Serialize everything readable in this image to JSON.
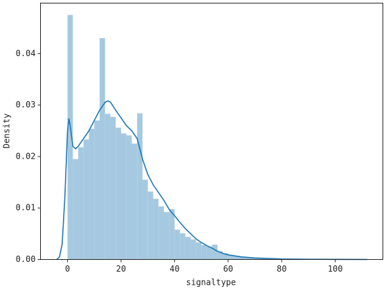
{
  "chart_data": {
    "type": "histogram",
    "xlabel": "signaltype",
    "ylabel": "Density",
    "bins": [
      0,
      2,
      4,
      6,
      8,
      10,
      12,
      14,
      16,
      18,
      20,
      22,
      24,
      26,
      28,
      30,
      32,
      34,
      36,
      38,
      40,
      42,
      44,
      46,
      48,
      50,
      52,
      54,
      56,
      58,
      60,
      62,
      64,
      66,
      68,
      70,
      72,
      74,
      76,
      78,
      80,
      82,
      84,
      86,
      88,
      90,
      92,
      94,
      96,
      98,
      100,
      102,
      104,
      106,
      108,
      110,
      112
    ],
    "values": [
      0.0475,
      0.0195,
      0.0218,
      0.0233,
      0.0254,
      0.027,
      0.043,
      0.0283,
      0.0277,
      0.0256,
      0.0245,
      0.0241,
      0.0225,
      0.0284,
      0.0155,
      0.0132,
      0.0118,
      0.0103,
      0.0092,
      0.0098,
      0.0058,
      0.0051,
      0.0044,
      0.0039,
      0.0033,
      0.0028,
      0.0025,
      0.0029,
      0.0016,
      0.0012,
      0.0009,
      0.0007,
      0.0005,
      0.0004,
      0.0003,
      0.0003,
      0.0002,
      0.0002,
      0.0001,
      0.0001,
      0.0001,
      0.0001,
      0.0001,
      0.0001,
      0.0001,
      0.0001,
      0.0001,
      0.0001,
      0.0001,
      0.0001,
      0.0001,
      0.0001,
      0.0001,
      0.0001,
      0.0001,
      0.0001
    ],
    "color": "#a5c9e1",
    "kde": {
      "color": "#1f77b4",
      "x": [
        -4,
        -3,
        -2,
        -1,
        0,
        0.5,
        1,
        2,
        3,
        4,
        6,
        8,
        10,
        12,
        14,
        15,
        16,
        18,
        20,
        22,
        24,
        26,
        28,
        30,
        32,
        34,
        36,
        38,
        40,
        42,
        44,
        46,
        48,
        50,
        52,
        54,
        56,
        58,
        60,
        65,
        70,
        80,
        90,
        100,
        112
      ],
      "y": [
        0,
        0.0005,
        0.003,
        0.012,
        0.025,
        0.0274,
        0.026,
        0.022,
        0.0215,
        0.022,
        0.0235,
        0.025,
        0.027,
        0.029,
        0.0305,
        0.0308,
        0.0306,
        0.029,
        0.0275,
        0.026,
        0.025,
        0.0235,
        0.0195,
        0.0165,
        0.0145,
        0.013,
        0.0115,
        0.0097,
        0.0085,
        0.0072,
        0.006,
        0.005,
        0.004,
        0.0033,
        0.0027,
        0.0022,
        0.0016,
        0.0012,
        0.0009,
        0.0005,
        0.0003,
        0.0001,
        5e-05,
        2e-05,
        0
      ]
    },
    "xlim": [
      -10.1,
      117.8
    ],
    "ylim": [
      0,
      0.0498
    ],
    "xticks": [
      0,
      20,
      40,
      60,
      80,
      100
    ],
    "yticks": [
      {
        "value": 0,
        "label": "0.00"
      },
      {
        "value": 0.01,
        "label": "0.01"
      },
      {
        "value": 0.02,
        "label": "0.02"
      },
      {
        "value": 0.03,
        "label": "0.03"
      },
      {
        "value": 0.04,
        "label": "0.04"
      }
    ]
  }
}
